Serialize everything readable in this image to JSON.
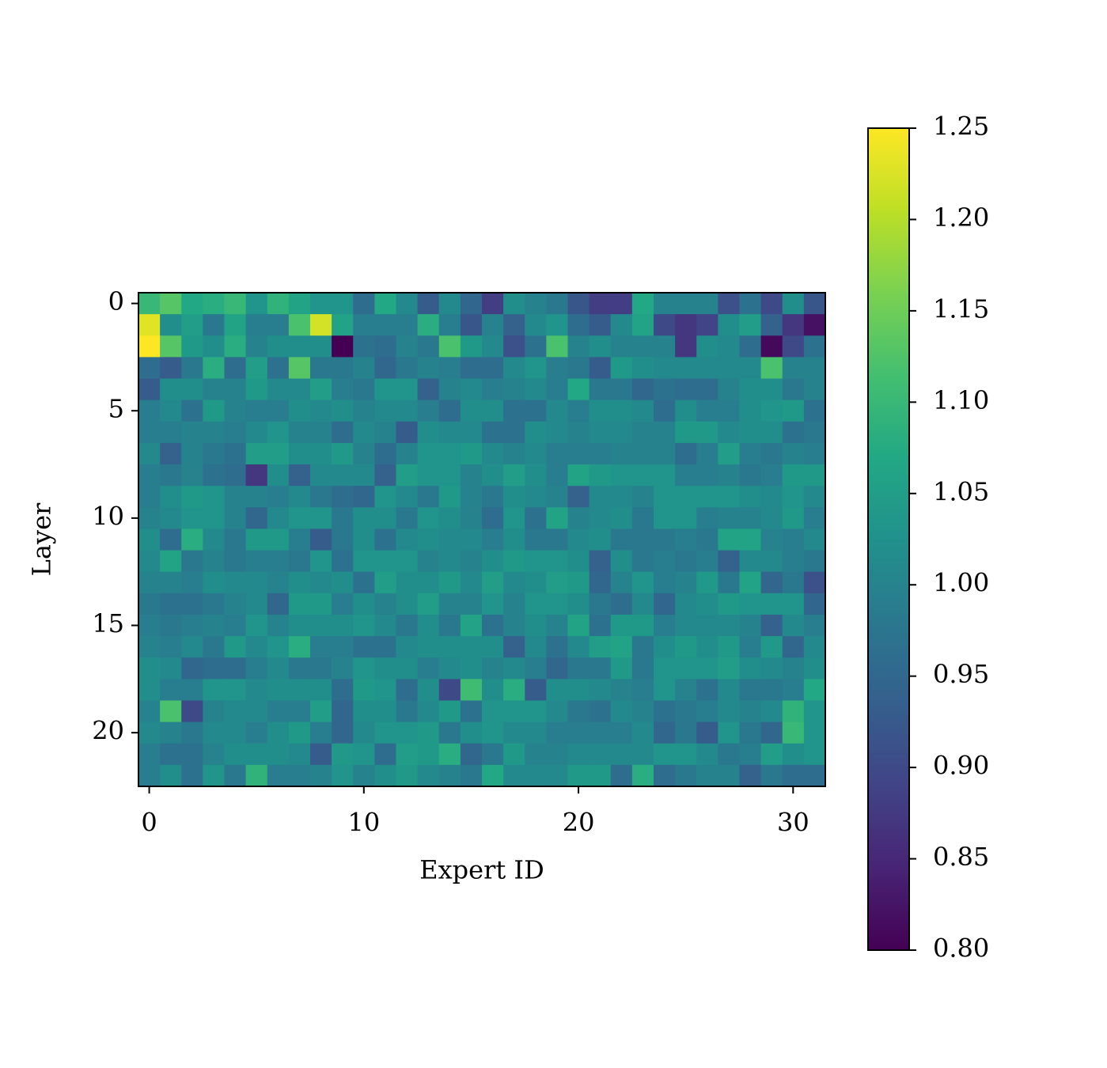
{
  "chart_data": {
    "type": "heatmap",
    "xlabel": "Expert ID",
    "ylabel": "Layer",
    "colormap": "viridis",
    "xlim": [
      -0.5,
      31.5
    ],
    "ylim": [
      22.5,
      -0.5
    ],
    "xticks": [
      0,
      10,
      20,
      30
    ],
    "yticks": [
      0,
      5,
      10,
      15,
      20
    ],
    "clim": [
      0.8,
      1.25
    ],
    "cticks": [
      {
        "value": 0.8,
        "label": "0.80"
      },
      0.85,
      {
        "value": 0.9,
        "label": "0.90"
      },
      0.95,
      {
        "value": 1.0,
        "label": "1.00"
      },
      1.05,
      {
        "value": 1.1,
        "label": "1.10"
      },
      1.15,
      {
        "value": 1.2,
        "label": "1.20"
      },
      1.25
    ],
    "values": [
      [
        1.1,
        1.13,
        1.07,
        1.08,
        1.1,
        1.03,
        1.09,
        1.06,
        1.03,
        1.03,
        0.96,
        1.07,
        1.01,
        0.93,
        1.01,
        0.95,
        0.88,
        1.02,
        1.0,
        0.98,
        0.92,
        0.88,
        0.88,
        1.07,
        1.0,
        1.0,
        1.0,
        0.91,
        0.97,
        0.9,
        1.02,
        0.92
      ],
      [
        1.23,
        1.02,
        1.05,
        0.98,
        1.06,
        0.99,
        0.99,
        1.12,
        1.22,
        1.06,
        0.99,
        0.99,
        0.99,
        1.08,
        0.99,
        0.92,
        1.0,
        0.94,
        1.01,
        1.03,
        0.96,
        0.93,
        1.01,
        1.06,
        0.9,
        0.87,
        0.89,
        1.02,
        1.05,
        0.94,
        0.87,
        0.82
      ],
      [
        1.25,
        1.13,
        1.04,
        1.02,
        1.08,
        1.0,
        1.02,
        1.02,
        1.02,
        0.8,
        0.97,
        0.96,
        1.0,
        0.98,
        1.12,
        1.04,
        1.01,
        0.91,
        0.97,
        1.12,
        1.0,
        1.02,
        1.0,
        1.0,
        1.0,
        0.87,
        1.02,
        1.01,
        0.96,
        0.81,
        0.9,
        0.97
      ],
      [
        0.96,
        0.93,
        0.98,
        1.08,
        0.96,
        1.05,
        0.97,
        1.13,
        0.98,
        0.98,
        1.0,
        0.95,
        0.98,
        1.0,
        0.99,
        0.96,
        0.96,
        1.01,
        1.03,
        0.99,
        0.98,
        0.93,
        1.04,
        1.02,
        1.01,
        1.01,
        1.01,
        1.01,
        1.01,
        1.12,
        1.0,
        1.0
      ],
      [
        0.93,
        1.02,
        1.02,
        1.0,
        1.0,
        1.04,
        1.01,
        1.01,
        1.05,
        0.99,
        0.98,
        1.03,
        1.03,
        0.94,
        1.0,
        1.01,
        0.99,
        1.0,
        1.01,
        0.99,
        1.07,
        0.98,
        0.98,
        0.95,
        0.97,
        0.96,
        0.96,
        1.0,
        1.02,
        1.02,
        0.98,
        1.0
      ],
      [
        0.99,
        1.01,
        0.97,
        1.04,
        1.0,
        0.99,
        0.99,
        1.02,
        1.01,
        1.02,
        1.0,
        1.01,
        1.01,
        0.99,
        0.96,
        1.02,
        1.02,
        0.97,
        0.97,
        1.01,
        0.99,
        1.02,
        1.02,
        1.01,
        0.96,
        1.02,
        0.99,
        0.99,
        1.02,
        1.03,
        1.04,
        0.97
      ],
      [
        0.99,
        0.99,
        1.0,
        1.0,
        0.99,
        1.01,
        1.03,
        1.0,
        1.0,
        0.96,
        1.01,
        1.0,
        0.93,
        1.02,
        1.01,
        1.01,
        0.97,
        0.97,
        1.02,
        1.01,
        1.0,
        1.01,
        1.01,
        1.0,
        1.0,
        1.04,
        1.04,
        1.01,
        1.02,
        1.02,
        0.97,
        0.98
      ],
      [
        1.01,
        0.94,
        1.0,
        0.98,
        0.97,
        1.05,
        1.05,
        1.02,
        1.02,
        1.04,
        1.0,
        0.96,
        1.0,
        1.03,
        1.03,
        1.04,
        1.01,
        1.0,
        1.01,
        0.99,
        0.99,
        0.99,
        1.0,
        1.0,
        1.0,
        0.96,
        0.99,
        1.05,
        0.99,
        0.98,
        1.0,
        0.99
      ],
      [
        0.99,
        0.98,
        1.0,
        0.97,
        0.96,
        0.87,
        1.02,
        0.94,
        1.01,
        1.01,
        1.01,
        0.94,
        1.05,
        1.03,
        1.03,
        1.0,
        1.02,
        1.05,
        1.02,
        0.99,
        1.06,
        1.04,
        1.03,
        1.03,
        1.03,
        0.99,
        0.99,
        1.0,
        0.98,
        0.99,
        1.04,
        1.04
      ],
      [
        0.99,
        1.02,
        1.04,
        1.03,
        1.0,
        1.0,
        0.99,
        1.01,
        0.98,
        0.96,
        0.95,
        1.03,
        1.01,
        0.98,
        1.04,
        1.0,
        0.98,
        1.02,
        1.01,
        1.0,
        0.94,
        1.01,
        1.01,
        1.0,
        1.03,
        1.03,
        1.03,
        1.03,
        1.02,
        1.01,
        1.03,
        1.01
      ],
      [
        1.0,
        1.01,
        1.03,
        1.03,
        1.0,
        0.95,
        1.01,
        1.03,
        1.03,
        0.98,
        1.02,
        1.02,
        0.98,
        1.03,
        1.02,
        1.0,
        0.96,
        1.03,
        0.97,
        1.06,
        1.0,
        1.01,
        1.02,
        0.98,
        1.03,
        1.03,
        0.99,
        1.0,
        1.0,
        1.01,
        1.04,
        0.99
      ],
      [
        1.02,
        0.96,
        1.08,
        1.01,
        0.98,
        1.04,
        1.04,
        0.99,
        0.93,
        0.98,
        1.02,
        0.97,
        1.01,
        1.02,
        1.01,
        1.01,
        0.99,
        1.02,
        0.98,
        0.98,
        1.01,
        1.02,
        0.98,
        0.98,
        0.98,
        0.99,
        0.98,
        1.06,
        1.06,
        1.0,
        0.99,
        1.01
      ],
      [
        1.01,
        1.06,
        0.98,
        1.0,
        0.98,
        0.99,
        0.99,
        0.98,
        1.03,
        0.97,
        1.03,
        1.03,
        1.03,
        1.0,
        1.01,
        1.0,
        1.02,
        1.04,
        1.03,
        1.03,
        1.02,
        0.94,
        1.02,
        0.98,
        0.99,
        0.98,
        0.99,
        0.94,
        1.01,
        1.01,
        0.99,
        0.98
      ],
      [
        1.0,
        1.0,
        0.99,
        1.02,
        1.01,
        1.01,
        1.0,
        1.02,
        1.01,
        1.02,
        0.97,
        1.05,
        1.02,
        1.02,
        1.04,
        1.01,
        1.05,
        1.01,
        1.02,
        1.05,
        1.04,
        0.95,
        1.0,
        1.03,
        0.99,
        1.0,
        1.04,
        0.98,
        1.06,
        0.95,
        0.98,
        0.91
      ],
      [
        0.98,
        0.97,
        0.97,
        0.98,
        1.0,
        1.01,
        0.95,
        1.04,
        1.04,
        0.99,
        1.02,
        1.0,
        1.02,
        1.05,
        1.0,
        1.0,
        1.03,
        1.0,
        1.03,
        1.03,
        1.02,
        0.98,
        0.96,
        1.01,
        0.95,
        1.01,
        1.02,
        1.04,
        1.03,
        1.03,
        1.03,
        0.95
      ],
      [
        0.99,
        0.98,
        0.99,
        1.0,
        0.99,
        1.03,
        1.0,
        1.02,
        1.02,
        1.02,
        1.03,
        1.01,
        0.98,
        1.02,
        0.98,
        1.06,
        0.97,
        1.0,
        1.02,
        1.0,
        1.06,
        0.97,
        1.04,
        1.04,
        0.99,
        1.01,
        1.01,
        1.01,
        1.0,
        0.94,
        1.01,
        0.99
      ],
      [
        1.0,
        0.99,
        1.01,
        0.98,
        1.04,
        1.01,
        1.03,
        1.08,
        0.99,
        0.99,
        0.97,
        0.97,
        1.01,
        1.02,
        1.02,
        1.02,
        1.02,
        0.94,
        1.01,
        0.97,
        1.01,
        1.05,
        1.06,
        0.98,
        1.02,
        1.04,
        1.02,
        1.04,
        0.99,
        1.04,
        0.95,
        1.01
      ],
      [
        1.02,
        1.01,
        0.95,
        0.96,
        0.96,
        0.99,
        1.01,
        0.98,
        0.98,
        1.0,
        1.03,
        1.02,
        1.02,
        0.99,
        1.01,
        1.02,
        1.0,
        1.01,
        0.99,
        0.95,
        0.98,
        0.98,
        1.04,
        0.98,
        1.03,
        1.03,
        1.03,
        1.05,
        1.02,
        1.01,
        1.0,
        1.02
      ],
      [
        1.02,
        0.99,
        0.99,
        1.03,
        1.03,
        1.01,
        1.02,
        1.02,
        1.02,
        0.96,
        1.04,
        1.03,
        0.96,
        1.02,
        0.9,
        1.11,
        1.02,
        1.08,
        0.93,
        1.02,
        1.02,
        1.01,
        1.0,
        0.99,
        1.03,
        1.0,
        0.97,
        1.01,
        0.98,
        0.98,
        0.99,
        1.07
      ],
      [
        1.0,
        1.12,
        0.9,
        1.0,
        1.01,
        1.01,
        0.99,
        0.99,
        1.05,
        0.95,
        1.02,
        1.02,
        0.98,
        1.01,
        1.04,
        0.97,
        1.03,
        1.03,
        1.03,
        1.01,
        0.98,
        0.97,
        1.01,
        1.0,
        0.97,
        0.98,
        0.99,
        1.01,
        1.0,
        1.01,
        1.09,
        1.03
      ],
      [
        1.01,
        1.0,
        0.98,
        1.01,
        1.01,
        0.99,
        1.02,
        1.04,
        0.99,
        0.95,
        1.01,
        1.03,
        1.03,
        1.04,
        0.98,
        1.02,
        1.03,
        1.01,
        1.01,
        0.99,
        0.99,
        0.99,
        0.99,
        1.01,
        0.95,
        0.98,
        0.93,
        1.03,
        0.98,
        0.95,
        1.1,
        1.03
      ],
      [
        0.99,
        0.97,
        0.97,
        1.0,
        1.02,
        1.02,
        1.02,
        1.01,
        0.93,
        1.04,
        1.03,
        0.96,
        1.05,
        1.04,
        1.08,
        0.95,
        0.98,
        1.04,
        1.0,
        1.0,
        1.01,
        1.01,
        1.01,
        1.01,
        1.03,
        1.03,
        1.01,
        0.98,
        0.99,
        1.05,
        1.02,
        1.03
      ],
      [
        0.99,
        1.02,
        0.97,
        1.03,
        0.98,
        1.09,
        0.99,
        0.99,
        1.0,
        1.03,
        1.0,
        1.02,
        1.04,
        1.01,
        1.0,
        0.98,
        1.07,
        1.01,
        1.01,
        1.01,
        1.04,
        1.04,
        0.96,
        1.08,
        0.96,
        0.98,
        1.0,
        1.0,
        0.94,
        0.98,
        0.96,
        0.96
      ]
    ]
  }
}
